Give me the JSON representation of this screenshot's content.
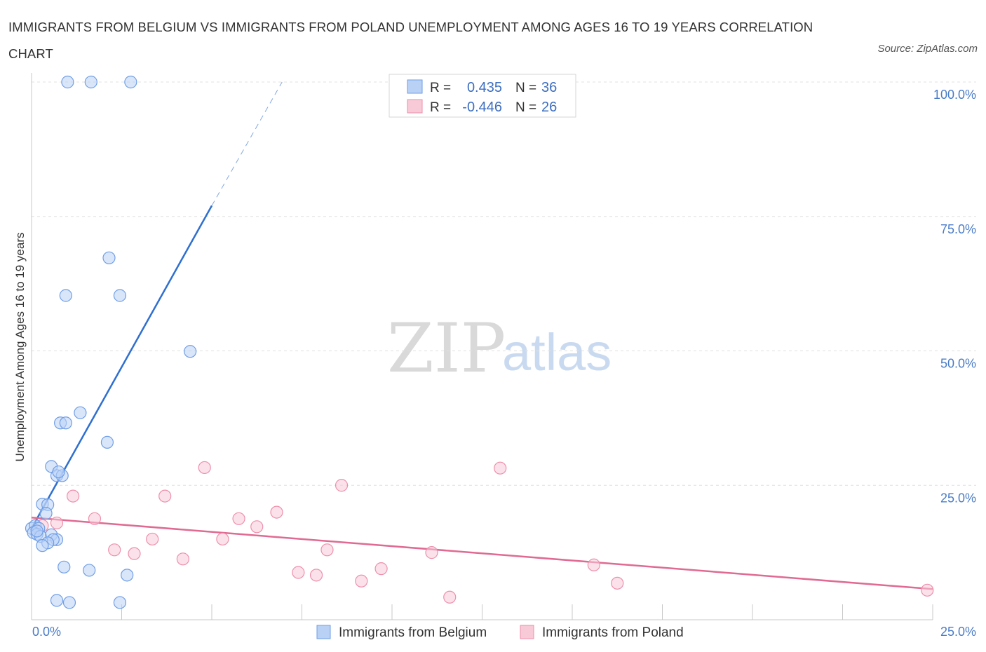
{
  "title": "IMMIGRANTS FROM BELGIUM VS IMMIGRANTS FROM POLAND UNEMPLOYMENT AMONG AGES 16 TO 19 YEARS CORRELATION CHART",
  "source": "Source: ZipAtlas.com",
  "watermark": {
    "zip": "ZIP",
    "atlas": "atlas"
  },
  "colors": {
    "belgium": "#6f9ee6",
    "belgium_fill": "#b9d1f5",
    "belgium_line": "#2e6fd0",
    "poland": "#ee8fab",
    "poland_fill": "#f8cad8",
    "poland_line": "#e06a93",
    "grid": "#e0e0e0",
    "tick": "#4a7cc7"
  },
  "legend": {
    "rows": [
      {
        "r_label": "R =",
        "r_value": "0.435",
        "n_label": "N =",
        "n_value": "36"
      },
      {
        "r_label": "R =",
        "r_value": "-0.446",
        "n_label": "N =",
        "n_value": "26"
      }
    ]
  },
  "bottom_legend": [
    "Immigrants from Belgium",
    "Immigrants from Poland"
  ],
  "chart_data": {
    "type": "scatter",
    "title": "IMMIGRANTS FROM BELGIUM VS IMMIGRANTS FROM POLAND UNEMPLOYMENT AMONG AGES 16 TO 19 YEARS CORRELATION CHART",
    "xlabel": "",
    "ylabel": "Unemployment Among Ages 16 to 19 years",
    "xlim": [
      0,
      25
    ],
    "ylim": [
      0,
      100
    ],
    "x_tick_labels": [
      "0.0%",
      "25.0%"
    ],
    "y_ticks": [
      25,
      50,
      75,
      100
    ],
    "y_tick_labels": [
      "25.0%",
      "50.0%",
      "75.0%",
      "100.0%"
    ],
    "grid": true,
    "series": [
      {
        "name": "Immigrants from Belgium",
        "R": 0.435,
        "N": 36,
        "points": [
          [
            1.0,
            100.0
          ],
          [
            1.65,
            100.0
          ],
          [
            2.75,
            100.0
          ],
          [
            2.15,
            67.3
          ],
          [
            0.95,
            60.3
          ],
          [
            2.45,
            60.3
          ],
          [
            4.4,
            49.9
          ],
          [
            1.35,
            38.5
          ],
          [
            0.8,
            36.6
          ],
          [
            0.95,
            36.6
          ],
          [
            2.1,
            33.0
          ],
          [
            0.55,
            28.5
          ],
          [
            0.7,
            26.8
          ],
          [
            0.85,
            26.8
          ],
          [
            0.75,
            27.5
          ],
          [
            0.3,
            21.5
          ],
          [
            0.45,
            21.4
          ],
          [
            0.4,
            19.8
          ],
          [
            0.0,
            17.0
          ],
          [
            0.1,
            17.5
          ],
          [
            0.2,
            17.0
          ],
          [
            0.05,
            16.2
          ],
          [
            0.15,
            15.9
          ],
          [
            0.25,
            15.5
          ],
          [
            0.55,
            15.8
          ],
          [
            0.7,
            14.9
          ],
          [
            0.6,
            14.9
          ],
          [
            0.45,
            14.3
          ],
          [
            0.3,
            13.8
          ],
          [
            0.9,
            9.8
          ],
          [
            1.6,
            9.2
          ],
          [
            2.65,
            8.3
          ],
          [
            0.7,
            3.6
          ],
          [
            1.05,
            3.2
          ],
          [
            2.45,
            3.2
          ],
          [
            0.15,
            16.5
          ]
        ],
        "trend": {
          "x_start": 0.0,
          "y_start": 17.0,
          "x_solid_end": 5.0,
          "y_solid_end": 77.0,
          "x_dash_end": 6.95,
          "y_dash_end": 100.0
        }
      },
      {
        "name": "Immigrants from Poland",
        "R": -0.446,
        "N": 26,
        "points": [
          [
            0.3,
            17.5
          ],
          [
            0.7,
            18.0
          ],
          [
            1.75,
            18.8
          ],
          [
            1.15,
            23.0
          ],
          [
            2.3,
            13.0
          ],
          [
            2.85,
            12.3
          ],
          [
            3.35,
            15.0
          ],
          [
            3.7,
            23.0
          ],
          [
            4.2,
            11.3
          ],
          [
            4.8,
            28.3
          ],
          [
            5.3,
            15.0
          ],
          [
            5.75,
            18.8
          ],
          [
            6.25,
            17.3
          ],
          [
            6.8,
            20.0
          ],
          [
            7.4,
            8.8
          ],
          [
            7.9,
            8.3
          ],
          [
            8.2,
            13.0
          ],
          [
            8.6,
            25.0
          ],
          [
            9.15,
            7.2
          ],
          [
            9.7,
            9.5
          ],
          [
            11.1,
            12.5
          ],
          [
            11.6,
            4.2
          ],
          [
            13.0,
            28.2
          ],
          [
            15.6,
            10.2
          ],
          [
            16.25,
            6.8
          ],
          [
            24.85,
            5.5
          ]
        ],
        "trend": {
          "x_start": 0.0,
          "y_start": 19.0,
          "x_end": 25.0,
          "y_end": 5.7
        }
      }
    ]
  }
}
